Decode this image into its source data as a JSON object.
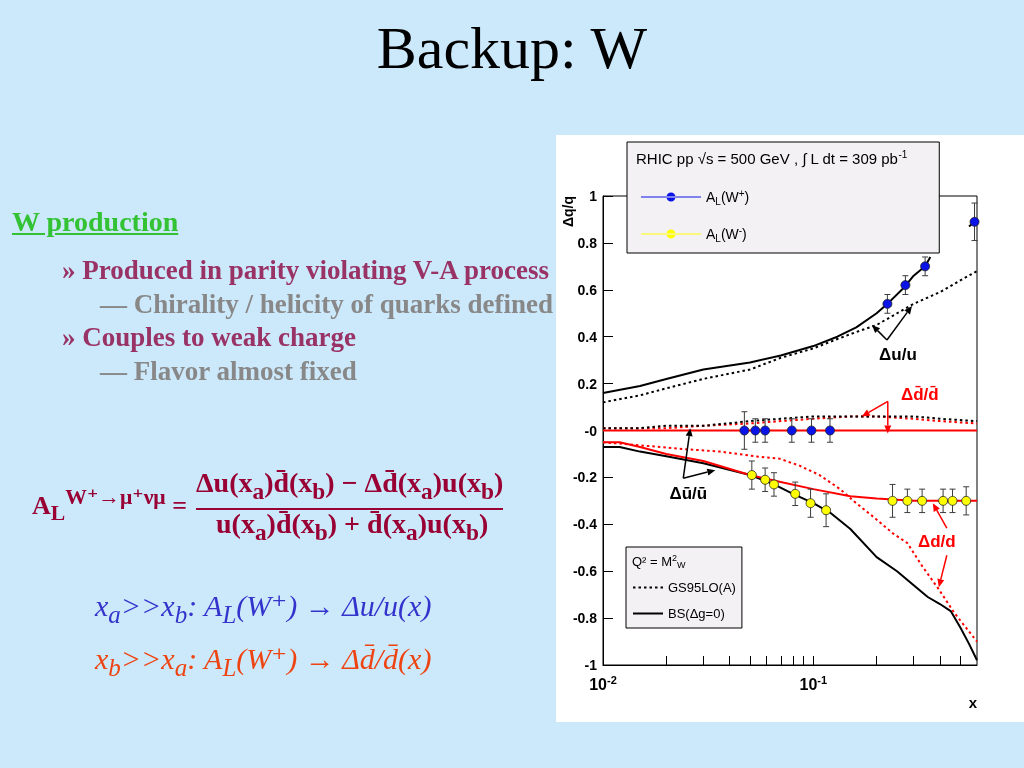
{
  "chart_data": {
    "type": "line",
    "title": "Backup: W",
    "xlabel": "x",
    "ylabel": "Δq/q",
    "legend_title": "RHIC pp √s = 500 GeV , ∫ L dt = 309 pb$^{-1}$",
    "log": "x",
    "xlim": [
      0.01,
      0.6
    ],
    "ylim": [
      -1,
      1
    ],
    "xticks": [
      {
        "value": 0.01,
        "label": "10$^{-2}$"
      },
      {
        "value": 0.02,
        "label": null
      },
      {
        "value": 0.03,
        "label": null
      },
      {
        "value": 0.04,
        "label": null
      },
      {
        "value": 0.05,
        "label": null
      },
      {
        "value": 0.06,
        "label": null
      },
      {
        "value": 0.07,
        "label": null
      },
      {
        "value": 0.08,
        "label": null
      },
      {
        "value": 0.09,
        "label": null
      },
      {
        "value": 0.1,
        "label": "10$^{-1}$"
      },
      {
        "value": 0.2,
        "label": null
      },
      {
        "value": 0.3,
        "label": null
      },
      {
        "value": 0.4,
        "label": null
      },
      {
        "value": 0.5,
        "label": null
      }
    ],
    "yticks": [
      -1,
      -0.8,
      -0.6,
      -0.4,
      -0.2,
      {
        "value": 0,
        "label": "-0"
      },
      0.2,
      0.4,
      0.6,
      0.8,
      1
    ],
    "legend": "left",
    "marker": "none",
    "series": [
      {
        "type": "scatter",
        "name": "A$_{L}$(W$^{+}$)",
        "color": "#0a14e6",
        "marker": "circle",
        "x": [
          0.047,
          0.053,
          0.059,
          0.079,
          0.098,
          0.12,
          0.225,
          0.274,
          0.34,
          0.584
        ],
        "values": [
          0,
          0,
          0,
          0,
          0,
          0,
          0.54,
          0.62,
          0.7,
          0.89
        ],
        "errors": [
          0.08,
          0.05,
          0.05,
          0.05,
          0.05,
          0.05,
          0.04,
          0.04,
          0.04,
          0.08
        ]
      },
      {
        "type": "scatter",
        "name": "A$_{L}$(W$^{-}$)",
        "color": "#ffff00",
        "marker": "circle",
        "x": [
          0.051,
          0.059,
          0.065,
          0.082,
          0.097,
          0.115,
          0.238,
          0.28,
          0.329,
          0.414,
          0.459,
          0.533
        ],
        "values": [
          -0.19,
          -0.21,
          -0.23,
          -0.27,
          -0.31,
          -0.34,
          -0.3,
          -0.3,
          -0.3,
          -0.3,
          -0.3,
          -0.3
        ],
        "errors": [
          0.06,
          0.05,
          0.05,
          0.05,
          0.06,
          0.07,
          0.07,
          0.05,
          0.05,
          0.05,
          0.05,
          0.06
        ]
      },
      {
        "name": "GS95LO(A)",
        "color": "#000000",
        "line_style": "dotted",
        "x": [
          0.01,
          0.015,
          0.02,
          0.03,
          0.05,
          0.07,
          0.1,
          0.13,
          0.16,
          0.2,
          0.25,
          0.3,
          0.4,
          0.5,
          0.6
        ],
        "values": [
          0.12,
          0.15,
          0.18,
          0.22,
          0.26,
          0.31,
          0.35,
          0.39,
          0.42,
          0.45,
          0.5,
          0.54,
          0.59,
          0.64,
          0.68
        ]
      },
      {
        "name": "BS(Δg=0)",
        "color": "#000000",
        "line_style": "solid",
        "x": [
          0.01,
          0.015,
          0.02,
          0.03,
          0.05,
          0.07,
          0.1,
          0.13,
          0.16,
          0.2,
          0.225,
          0.27,
          0.3,
          0.34,
          0.36,
          0.45,
          0.55,
          0.6
        ],
        "values": [
          0.16,
          0.19,
          0.22,
          0.26,
          0.29,
          0.32,
          0.36,
          0.4,
          0.44,
          0.5,
          0.54,
          0.61,
          0.66,
          0.7,
          0.74,
          null,
          0.87,
          0.9
        ]
      },
      {
        "color": "#ff0000",
        "line_style": "solid",
        "x": [
          0.01,
          0.6
        ],
        "values": [
          0,
          0
        ]
      },
      {
        "color": "#ff0000",
        "line_style": "dotted",
        "x": [
          0.01,
          0.02,
          0.03,
          0.05,
          0.07,
          0.1,
          0.15,
          0.2,
          0.3,
          0.4,
          0.6
        ],
        "values": [
          0.01,
          0.01,
          0.02,
          0.03,
          0.04,
          0.05,
          0.06,
          0.06,
          0.05,
          0.04,
          0.03
        ]
      },
      {
        "color": "#000000",
        "line_style": "dotted",
        "x": [
          0.01,
          0.015,
          0.02,
          0.03,
          0.05,
          0.07,
          0.1,
          0.15,
          0.2,
          0.3,
          0.4,
          0.6
        ],
        "values": [
          0.01,
          0.01,
          0.02,
          0.02,
          0.04,
          0.05,
          0.06,
          0.06,
          0.06,
          0.06,
          0.05,
          0.04
        ]
      },
      {
        "color": "#000000",
        "line_style": "solid",
        "x": [
          0.01,
          0.012,
          0.015,
          0.02,
          0.03,
          0.05,
          0.065,
          0.08,
          0.1,
          0.12,
          0.15,
          0.2,
          0.25,
          0.3,
          0.35,
          0.4,
          0.45,
          0.5,
          0.55,
          0.6
        ],
        "values": [
          -0.07,
          -0.07,
          -0.09,
          -0.11,
          -0.14,
          -0.19,
          -0.23,
          -0.27,
          -0.31,
          -0.35,
          -0.42,
          -0.54,
          -0.6,
          -0.66,
          -0.71,
          -0.74,
          -0.77,
          -0.84,
          -0.91,
          -0.98
        ]
      },
      {
        "color": "#ff0000",
        "line_style": "solid",
        "x": [
          0.01,
          0.012,
          0.015,
          0.02,
          0.03,
          0.05,
          0.07,
          0.1,
          0.15,
          0.2,
          0.3,
          0.6
        ],
        "values": [
          -0.05,
          -0.05,
          -0.07,
          -0.1,
          -0.13,
          -0.19,
          -0.22,
          -0.25,
          -0.28,
          -0.29,
          -0.3,
          -0.3
        ]
      },
      {
        "color": "#ff0000",
        "line_style": "dotted",
        "x": [
          0.01,
          0.025,
          0.036,
          0.053,
          0.069,
          0.086,
          0.107,
          0.134,
          0.155,
          0.194,
          0.24,
          0.28,
          0.33,
          0.39,
          0.47,
          0.6
        ],
        "values": [
          -0.05,
          -0.08,
          -0.09,
          -0.11,
          -0.12,
          -0.15,
          -0.19,
          -0.25,
          -0.3,
          -0.37,
          -0.44,
          -0.48,
          -0.58,
          -0.67,
          -0.78,
          -0.9
        ]
      }
    ],
    "annotations": [
      "W production",
      "» Produced in parity violating V-A process",
      "— Chirality / helicity of quarks defined",
      "» Couples to weak charge",
      "— Flavor almost fixed",
      "A$_{L}$$^{W⁺→μ⁺νμ}$ =",
      "Δu(x$_{a}$)d̄(x$_{b}$) − Δd̄(x$_{a}$)u(x$_{b}$)",
      "u(x$_{a}$)d̄(x$_{b}$) + d̄(x$_{a}$)u(x$_{b}$)",
      "x$_{a}$>>x$_{b}$: A$_{L}$(W⁺) → Δu/u(x)",
      "x$_{b}$>>x$_{a}$: A$_{L}$(W⁺) → Δd̄/d̄(x)",
      "Q² = M$^{2}$$_{W}$",
      {
        "text": "Δu/u",
        "x": 0.19,
        "y": 0.45
      },
      {
        "text": "Δd̄/d̄",
        "x": 0.17,
        "y": 0.06
      },
      {
        "text": "Δū/ū",
        "x": 0.026,
        "y": 0.01
      },
      {
        "text": "Δd/d",
        "x": 0.37,
        "y": -0.31
      }
    ]
  }
}
